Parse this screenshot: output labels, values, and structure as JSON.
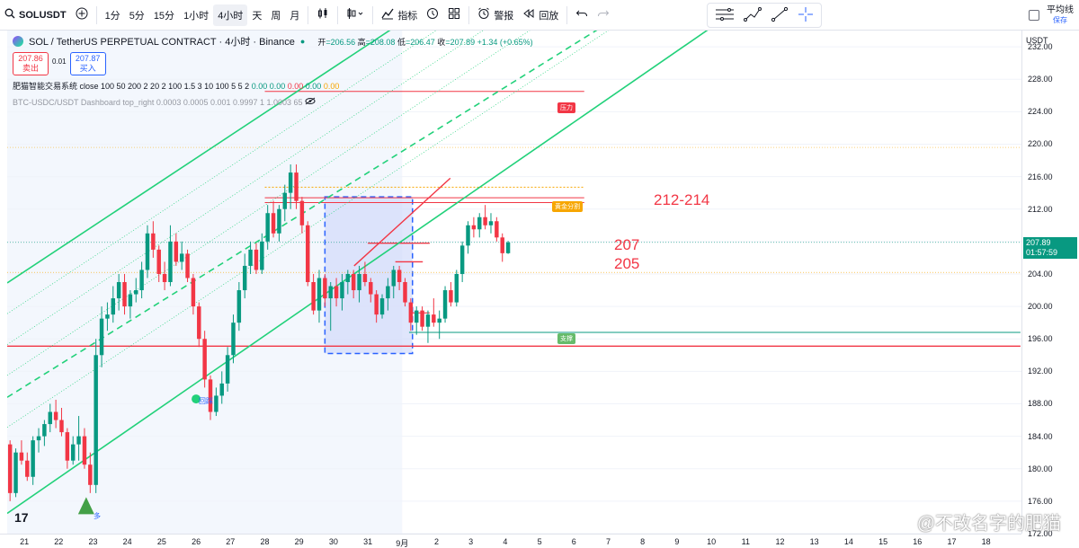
{
  "toolbar": {
    "symbol": "SOLUSDT",
    "intervals": [
      "1分",
      "5分",
      "15分",
      "1小时",
      "4小时",
      "天",
      "周",
      "月"
    ],
    "active_interval": "4小时",
    "indicators_label": "指标",
    "alert_label": "警报",
    "replay_label": "回放",
    "avg_line_label": "平均线",
    "avg_line_sub": "保存"
  },
  "legend": {
    "title": "SOL / TetherUS PERPETUAL CONTRACT · 4小时 · Binance",
    "open_label": "开",
    "open": "=206.56",
    "high_label": "高",
    "high": "=208.08",
    "low_label": "低",
    "low": "=206.47",
    "close_label": "收",
    "close": "=207.89",
    "change": "+1.34 (+0.65%)",
    "sell_price": "207.86",
    "sell_label": "卖出",
    "spread": "0.01",
    "buy_price": "207.87",
    "buy_label": "买入",
    "indicator1": "肥猫智能交易系统 close 100 50 200 2 20 2 100 1.5 3 10 100 5 5 2",
    "indicator1_values_green": "0.00 0.00",
    "indicator1_values_red": "0.00",
    "indicator1_values_green2": "0.00",
    "indicator1_values_orange": "0.00",
    "indicator2": "BTC-USDC/USDT Dashboard top_right 0.0003 0.0005 0.001 0.9997 1 1.0003 65"
  },
  "price_axis": {
    "currency": "USDT",
    "ticks": [
      "232.00",
      "228.00",
      "224.00",
      "220.00",
      "216.00",
      "212.00",
      "208.00",
      "204.00",
      "200.00",
      "196.00",
      "192.00",
      "188.00",
      "184.00",
      "180.00",
      "176.00",
      "172.00"
    ],
    "last_price": "207.89",
    "countdown": "01:57:59"
  },
  "time_axis": {
    "ticks": [
      "21",
      "22",
      "23",
      "24",
      "25",
      "26",
      "27",
      "28",
      "29",
      "30",
      "31",
      "9月",
      "2",
      "3",
      "4",
      "5",
      "6",
      "7",
      "8",
      "9",
      "10",
      "11",
      "12",
      "13",
      "14",
      "15",
      "16",
      "17",
      "18"
    ]
  },
  "annotations": {
    "zone_top": "212-214",
    "level_mid": "207",
    "level_low": "205",
    "resistance_tag": "压力",
    "box_top_tag": "黄金分割",
    "support_tag": "支撑",
    "rebound_tag": "回踩",
    "buy_marker": "多"
  },
  "watermark": "@不改名字的肥猫",
  "colors": {
    "up": "#089981",
    "down": "#f23645",
    "channel": "#22d17a",
    "box_fill": "#cfd9fb",
    "box_border": "#2962ff",
    "accent": "#2962ff"
  },
  "chart_data": {
    "type": "candlestick",
    "symbol": "SOLUSDT",
    "interval": "4h",
    "ylim": [
      172,
      234
    ],
    "x_start_day": 20.5,
    "candles_per_day": 6,
    "candles": [
      [
        183,
        183.5,
        176,
        177
      ],
      [
        177,
        182.5,
        176.5,
        182
      ],
      [
        182,
        183.5,
        180.5,
        181
      ],
      [
        181,
        182,
        178.5,
        179
      ],
      [
        179,
        184,
        178,
        183.5
      ],
      [
        183.5,
        185,
        182,
        184
      ],
      [
        184,
        186,
        182.8,
        185.5
      ],
      [
        185.5,
        188,
        184.5,
        187
      ],
      [
        187,
        188.5,
        185,
        186
      ],
      [
        186,
        187.5,
        184,
        184.5
      ],
      [
        184.5,
        185,
        180,
        181
      ],
      [
        181,
        184,
        180.5,
        183
      ],
      [
        183,
        186.5,
        181,
        184
      ],
      [
        184,
        185,
        180,
        180.5
      ],
      [
        180.5,
        182,
        177,
        178
      ],
      [
        178,
        196,
        177,
        194
      ],
      [
        194,
        200,
        192.5,
        198.5
      ],
      [
        198.5,
        200.5,
        197,
        199
      ],
      [
        199,
        202.5,
        198,
        201
      ],
      [
        201,
        204,
        199.5,
        203
      ],
      [
        203,
        204,
        199,
        200
      ],
      [
        200,
        202,
        198.5,
        201.5
      ],
      [
        201.5,
        203.5,
        200.5,
        202
      ],
      [
        202,
        205.5,
        201,
        204.5
      ],
      [
        204.5,
        210,
        203.5,
        209
      ],
      [
        209,
        210.5,
        206,
        207
      ],
      [
        207,
        207.5,
        203,
        204
      ],
      [
        204,
        205.5,
        202,
        203
      ],
      [
        203,
        210,
        202.5,
        208
      ],
      [
        208,
        209,
        205,
        205.5
      ],
      [
        205.5,
        208,
        204.5,
        206.5
      ],
      [
        206.5,
        207,
        203,
        203.5
      ],
      [
        203.5,
        204,
        199,
        200
      ],
      [
        200,
        200.5,
        195,
        196
      ],
      [
        196,
        197,
        190,
        191
      ],
      [
        191,
        191.5,
        186,
        187
      ],
      [
        187,
        190,
        186.5,
        189
      ],
      [
        189,
        192,
        188,
        190.5
      ],
      [
        190.5,
        195,
        189.5,
        194
      ],
      [
        194,
        199,
        193,
        198
      ],
      [
        198,
        203,
        197,
        202
      ],
      [
        202,
        206.5,
        201,
        205
      ],
      [
        205,
        208,
        204,
        207
      ],
      [
        207,
        207.8,
        204,
        204.5
      ],
      [
        204.5,
        209,
        204,
        208
      ],
      [
        208,
        212.5,
        207,
        211.5
      ],
      [
        211.5,
        213,
        208.5,
        209
      ],
      [
        209,
        212.5,
        208,
        212
      ],
      [
        212,
        215,
        210.5,
        214
      ],
      [
        214,
        217.5,
        212,
        216.5
      ],
      [
        216.5,
        217.5,
        212,
        213
      ],
      [
        213,
        213.5,
        209,
        210
      ],
      [
        210,
        210.5,
        202.5,
        203
      ],
      [
        203,
        204,
        199,
        199.5
      ],
      [
        199.5,
        204.5,
        198,
        203.5
      ],
      [
        203.5,
        204,
        200,
        201
      ],
      [
        201,
        203,
        197,
        202.5
      ],
      [
        202.5,
        203.5,
        200,
        201
      ],
      [
        201,
        204,
        199.5,
        203
      ],
      [
        203,
        204.5,
        201.5,
        204
      ],
      [
        204,
        204.5,
        201,
        202
      ],
      [
        202,
        205,
        200.5,
        204
      ],
      [
        204,
        205.5,
        202.5,
        203
      ],
      [
        203,
        203.5,
        200.5,
        201.5
      ],
      [
        201.5,
        202,
        198,
        199
      ],
      [
        199,
        201.5,
        198.5,
        201
      ],
      [
        201,
        203.5,
        199.5,
        202.5
      ],
      [
        202.5,
        205,
        201,
        204.5
      ],
      [
        204.5,
        205,
        202,
        203
      ],
      [
        203,
        203.5,
        200,
        200.5
      ],
      [
        200.5,
        201,
        197,
        198
      ],
      [
        198,
        200,
        196.5,
        199.5
      ],
      [
        199.5,
        200,
        197,
        197.5
      ],
      [
        197.5,
        199.5,
        195.5,
        199
      ],
      [
        199,
        201,
        197.5,
        198
      ],
      [
        198,
        199.5,
        196,
        198.5
      ],
      [
        198.5,
        202.5,
        198,
        202
      ],
      [
        202,
        203,
        200,
        200.5
      ],
      [
        200.5,
        204.5,
        200,
        204
      ],
      [
        204,
        208,
        203,
        207.5
      ],
      [
        207.5,
        210.5,
        206.5,
        210
      ],
      [
        210,
        211,
        208.5,
        209.5
      ],
      [
        209.5,
        211.5,
        208.5,
        211
      ],
      [
        211,
        212.5,
        209.5,
        210
      ],
      [
        210,
        211.5,
        209,
        210.5
      ],
      [
        210.5,
        211,
        208,
        208.5
      ],
      [
        208.5,
        209,
        205.5,
        206.56
      ],
      [
        206.56,
        208.08,
        206.47,
        207.89
      ]
    ],
    "horizontal_levels": [
      226.5,
      214.7,
      213.4,
      212.8,
      207.8,
      205.5,
      204.2,
      199.2,
      196.8,
      195.1
    ],
    "box": {
      "x_from_day": 29.75,
      "x_to_day": 32.3,
      "top": 213.5,
      "bottom": 194.2
    },
    "channel_lines": [
      {
        "x0": 20.5,
        "y0": 202.9,
        "x1": 28.3,
        "y1": 224.7,
        "style": "solid"
      },
      {
        "x0": 20.5,
        "y0": 188.8,
        "x1": 27.1,
        "y1": 206.2,
        "style": "dashed"
      },
      {
        "x0": 20.5,
        "y0": 174.5,
        "x1": 29.4,
        "y1": 200.5,
        "style": "solid"
      }
    ],
    "trendline": {
      "x0": 30.6,
      "y0": 205.0,
      "x1": 33.4,
      "y1": 215.8
    },
    "last_price": 207.89
  }
}
